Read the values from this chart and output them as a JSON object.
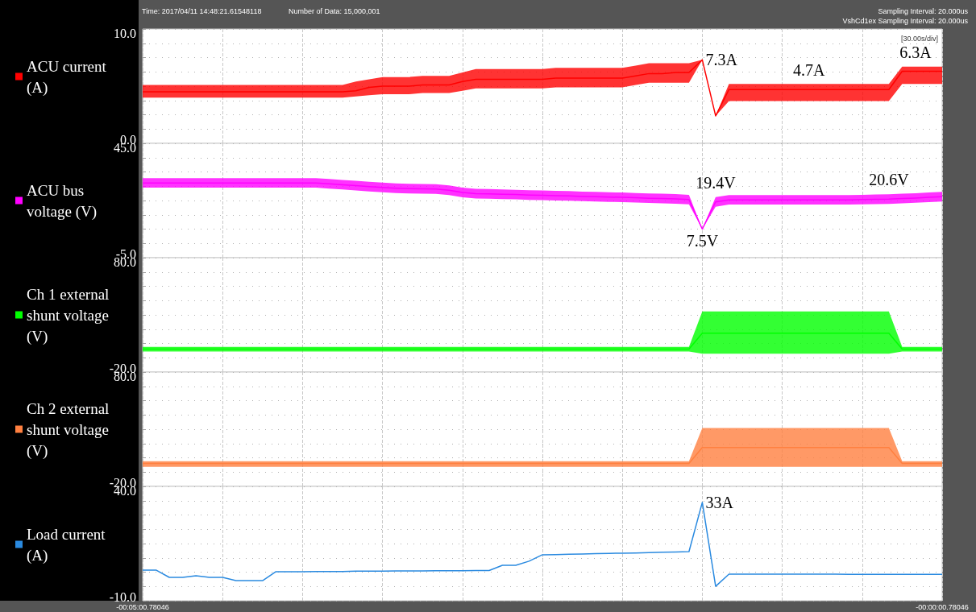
{
  "chart_data": [
    {
      "type": "line",
      "annotations": [
        "Time: 2017/04/11 14:48:21.61548118",
        "Number of Data: 15,000,001",
        "Sampling Interval: 20.000us",
        "VshCd1ex Sampling Interval: 20.000us",
        "[30.00s/div]",
        "7.3A",
        {
          "text": "4.7A",
          "y": 4.7
        },
        {
          "text": "6.3A",
          "y": 6.3
        }
      ],
      "categories": [
        null,
        null,
        null,
        null,
        null,
        null,
        null,
        null,
        null,
        null,
        null,
        null,
        null,
        null,
        null,
        null,
        null,
        null,
        null,
        null,
        null,
        null,
        null,
        null,
        null,
        null,
        null,
        null,
        null,
        null,
        null,
        null,
        null,
        null,
        null,
        null,
        null,
        null,
        null,
        null,
        null,
        null,
        null,
        null,
        null,
        null,
        null,
        null,
        null,
        null,
        null,
        null,
        null,
        null,
        null,
        null,
        null,
        null,
        null,
        null,
        null
      ],
      "series": [
        {
          "name": "ACU current (A)",
          "color": "#ff0000",
          "values": [
            4.5,
            4.5,
            4.5,
            4.5,
            4.5,
            4.5,
            4.5,
            4.5,
            4.5,
            4.5,
            4.5,
            4.5,
            4.5,
            4.5,
            4.5,
            4.5,
            4.6,
            4.9,
            5.0,
            5.0,
            5.0,
            5.1,
            5.1,
            5.1,
            5.4,
            5.6,
            5.6,
            5.6,
            5.6,
            5.6,
            5.6,
            5.7,
            5.7,
            5.7,
            5.7,
            5.7,
            5.7,
            5.9,
            6.1,
            6.1,
            6.2,
            6.2,
            7.3,
            2.4,
            4.7,
            4.7,
            4.7,
            4.7,
            4.7,
            4.7,
            4.7,
            4.7,
            4.7,
            4.7,
            4.7,
            4.7,
            4.7,
            6.3,
            6.3,
            6.3,
            6.3
          ],
          "lower": [
            4.0,
            4.0,
            4.0,
            4.0,
            4.0,
            4.0,
            4.0,
            4.0,
            4.0,
            4.0,
            4.0,
            4.0,
            4.0,
            4.0,
            4.0,
            4.0,
            4.1,
            4.2,
            4.3,
            4.3,
            4.3,
            4.4,
            4.4,
            4.4,
            4.6,
            4.8,
            4.8,
            4.8,
            4.8,
            4.8,
            4.8,
            4.9,
            4.9,
            4.9,
            4.9,
            4.9,
            4.9,
            5.1,
            5.3,
            5.3,
            5.3,
            5.3,
            7.3,
            2.4,
            3.7,
            3.7,
            3.7,
            3.7,
            3.7,
            3.7,
            3.7,
            3.7,
            3.7,
            3.7,
            3.7,
            3.7,
            3.7,
            5.2,
            5.2,
            5.2,
            5.2
          ],
          "upper": [
            5.1,
            5.1,
            5.1,
            5.1,
            5.1,
            5.1,
            5.1,
            5.1,
            5.1,
            5.1,
            5.1,
            5.1,
            5.1,
            5.1,
            5.1,
            5.1,
            5.4,
            5.6,
            5.8,
            5.8,
            5.8,
            5.9,
            5.9,
            5.9,
            6.2,
            6.5,
            6.5,
            6.5,
            6.5,
            6.5,
            6.5,
            6.6,
            6.6,
            6.6,
            6.6,
            6.6,
            6.6,
            6.8,
            7.0,
            7.0,
            7.0,
            7.0,
            7.3,
            2.4,
            5.2,
            5.2,
            5.2,
            5.2,
            5.2,
            5.2,
            5.2,
            5.2,
            5.2,
            5.2,
            5.2,
            5.2,
            5.2,
            6.7,
            6.7,
            6.7,
            6.7
          ]
        }
      ],
      "ylim": [
        0,
        10
      ],
      "yticks": [
        {
          "value": 0,
          "label": "0.0"
        },
        {
          "value": 1.25,
          "label": null
        },
        {
          "value": 2.5,
          "label": null
        },
        {
          "value": 3.75,
          "label": null
        },
        {
          "value": 5,
          "label": null
        },
        {
          "value": 6.25,
          "label": null
        },
        {
          "value": 7.5,
          "label": null
        },
        {
          "value": 8.75,
          "label": null
        },
        {
          "value": 10,
          "label": "10.0"
        }
      ],
      "tick_labels": "y",
      "grid": true,
      "legend": "left",
      "marker": "none"
    },
    {
      "type": "line",
      "annotations": [
        {
          "text": "19.4V",
          "y": 19.4
        },
        {
          "text": "7.5V",
          "y": 7.5
        },
        {
          "text": "20.6V",
          "y": 20.6
        }
      ],
      "categories": [
        null,
        null,
        null,
        null,
        null,
        null,
        null,
        null,
        null,
        null,
        null,
        null,
        null,
        null,
        null,
        null,
        null,
        null,
        null,
        null,
        null,
        null,
        null,
        null,
        null,
        null,
        null,
        null,
        null,
        null,
        null,
        null,
        null,
        null,
        null,
        null,
        null,
        null,
        null,
        null,
        null,
        null,
        null,
        null,
        null,
        null,
        null,
        null,
        null,
        null,
        null,
        null,
        null,
        null,
        null,
        null,
        null,
        null,
        null,
        null,
        null
      ],
      "series": [
        {
          "name": "ACU bus voltage (V)",
          "color": "#ff00ff",
          "values": [
            27.7,
            27.7,
            27.7,
            27.7,
            27.7,
            27.7,
            27.7,
            27.7,
            27.7,
            27.7,
            27.7,
            27.7,
            27.7,
            27.7,
            27.3,
            26.9,
            26.5,
            26.1,
            25.7,
            25.4,
            25.2,
            25.1,
            25.0,
            24.5,
            23.5,
            23.0,
            22.9,
            22.7,
            22.6,
            22.4,
            22.3,
            22.1,
            22.0,
            21.8,
            21.7,
            21.5,
            21.4,
            21.2,
            21.0,
            20.9,
            20.7,
            20.4,
            7.5,
            19.4,
            20.3,
            20.3,
            20.3,
            20.3,
            20.3,
            20.3,
            20.3,
            20.3,
            20.3,
            20.3,
            20.4,
            20.5,
            20.6,
            20.9,
            21.1,
            21.4,
            21.7
          ],
          "lower": [
            25.6,
            25.6,
            25.6,
            25.6,
            25.6,
            25.6,
            25.6,
            25.6,
            25.6,
            25.6,
            25.6,
            25.6,
            25.6,
            25.6,
            25.2,
            24.8,
            24.4,
            24.0,
            23.6,
            23.3,
            23.1,
            23.0,
            22.9,
            22.4,
            21.4,
            20.9,
            20.8,
            20.6,
            20.5,
            20.3,
            20.2,
            20.0,
            19.9,
            19.7,
            19.6,
            19.4,
            19.3,
            19.1,
            18.9,
            18.8,
            18.6,
            18.3,
            7.5,
            17.3,
            18.2,
            18.2,
            18.2,
            18.2,
            18.2,
            18.2,
            18.2,
            18.2,
            18.2,
            18.2,
            18.3,
            18.4,
            18.5,
            18.8,
            19.0,
            19.3,
            19.6
          ],
          "upper": [
            29.8,
            29.8,
            29.8,
            29.8,
            29.8,
            29.8,
            29.8,
            29.8,
            29.8,
            29.8,
            29.8,
            29.8,
            29.8,
            29.8,
            29.4,
            29.0,
            28.6,
            28.2,
            27.8,
            27.5,
            27.3,
            27.2,
            27.1,
            26.6,
            25.6,
            25.1,
            25.0,
            24.8,
            24.7,
            24.5,
            24.4,
            24.2,
            24.1,
            23.9,
            23.8,
            23.6,
            23.5,
            23.3,
            23.1,
            23.0,
            22.8,
            22.5,
            7.5,
            21.5,
            22.4,
            22.4,
            22.4,
            22.4,
            22.4,
            22.4,
            22.4,
            22.4,
            22.4,
            22.4,
            22.5,
            22.6,
            22.7,
            23.0,
            23.2,
            23.5,
            23.8
          ]
        }
      ],
      "ylim": [
        -5,
        45
      ],
      "yticks": [
        {
          "value": -5,
          "label": "-5.0"
        },
        {
          "value": 1.25,
          "label": null
        },
        {
          "value": 7.5,
          "label": null
        },
        {
          "value": 13.75,
          "label": null
        },
        {
          "value": 20,
          "label": null
        },
        {
          "value": 26.25,
          "label": null
        },
        {
          "value": 32.5,
          "label": null
        },
        {
          "value": 38.75,
          "label": null
        },
        {
          "value": 45,
          "label": "45.0"
        }
      ],
      "tick_labels": "y",
      "grid": true,
      "legend": "left",
      "marker": "none"
    },
    {
      "type": "line",
      "categories": [
        null,
        null,
        null,
        null,
        null,
        null,
        null,
        null,
        null,
        null,
        null,
        null,
        null,
        null,
        null,
        null,
        null,
        null,
        null,
        null,
        null,
        null,
        null,
        null,
        null,
        null,
        null,
        null,
        null,
        null,
        null,
        null,
        null,
        null,
        null,
        null,
        null,
        null,
        null,
        null,
        null,
        null,
        null,
        null,
        null,
        null,
        null,
        null,
        null,
        null,
        null,
        null,
        null,
        null,
        null,
        null,
        null,
        null,
        null,
        null,
        null
      ],
      "series": [
        {
          "name": "Ch 1 external shunt voltage (V)",
          "color": "#00ff00",
          "values": [
            0,
            0,
            0,
            0,
            0,
            0,
            0,
            0,
            0,
            0,
            0,
            0,
            0,
            0,
            0,
            0,
            0,
            0,
            0,
            0,
            0,
            0,
            0,
            0,
            0,
            0,
            0,
            0,
            0,
            0,
            0,
            0,
            0,
            0,
            0,
            0,
            0,
            0,
            0,
            0,
            0,
            0,
            14,
            14,
            14,
            14,
            14,
            14,
            14,
            14,
            14,
            14,
            14,
            14,
            14,
            14,
            14,
            0,
            0,
            0,
            0
          ],
          "lower": [
            -2,
            -2,
            -2,
            -2,
            -2,
            -2,
            -2,
            -2,
            -2,
            -2,
            -2,
            -2,
            -2,
            -2,
            -2,
            -2,
            -2,
            -2,
            -2,
            -2,
            -2,
            -2,
            -2,
            -2,
            -2,
            -2,
            -2,
            -2,
            -2,
            -2,
            -2,
            -2,
            -2,
            -2,
            -2,
            -2,
            -2,
            -2,
            -2,
            -2,
            -2,
            -2,
            -4,
            -4,
            -4,
            -4,
            -4,
            -4,
            -4,
            -4,
            -4,
            -4,
            -4,
            -4,
            -4,
            -4,
            -4,
            -2,
            -2,
            -2,
            -2
          ],
          "upper": [
            2,
            2,
            2,
            2,
            2,
            2,
            2,
            2,
            2,
            2,
            2,
            2,
            2,
            2,
            2,
            2,
            2,
            2,
            2,
            2,
            2,
            2,
            2,
            2,
            2,
            2,
            2,
            2,
            2,
            2,
            2,
            2,
            2,
            2,
            2,
            2,
            2,
            2,
            2,
            2,
            2,
            2,
            33,
            33,
            33,
            33,
            33,
            33,
            33,
            33,
            33,
            33,
            33,
            33,
            33,
            33,
            33,
            2,
            2,
            2,
            2
          ]
        }
      ],
      "ylim": [
        -20,
        80
      ],
      "yticks": [
        {
          "value": -20,
          "label": "-20.0"
        },
        {
          "value": -7.5,
          "label": null
        },
        {
          "value": 5,
          "label": null
        },
        {
          "value": 17.5,
          "label": null
        },
        {
          "value": 30,
          "label": null
        },
        {
          "value": 42.5,
          "label": null
        },
        {
          "value": 55,
          "label": null
        },
        {
          "value": 67.5,
          "label": null
        },
        {
          "value": 80,
          "label": "80.0"
        }
      ],
      "tick_labels": "y",
      "grid": true,
      "legend": "left",
      "marker": "none"
    },
    {
      "type": "line",
      "categories": [
        null,
        null,
        null,
        null,
        null,
        null,
        null,
        null,
        null,
        null,
        null,
        null,
        null,
        null,
        null,
        null,
        null,
        null,
        null,
        null,
        null,
        null,
        null,
        null,
        null,
        null,
        null,
        null,
        null,
        null,
        null,
        null,
        null,
        null,
        null,
        null,
        null,
        null,
        null,
        null,
        null,
        null,
        null,
        null,
        null,
        null,
        null,
        null,
        null,
        null,
        null,
        null,
        null,
        null,
        null,
        null,
        null,
        null,
        null,
        null,
        null
      ],
      "series": [
        {
          "name": "Ch 2 external shunt voltage (V)",
          "color": "#ff8040",
          "values": [
            0,
            0,
            0,
            0,
            0,
            0,
            0,
            0,
            0,
            0,
            0,
            0,
            0,
            0,
            0,
            0,
            0,
            0,
            0,
            0,
            0,
            0,
            0,
            0,
            0,
            0,
            0,
            0,
            0,
            0,
            0,
            0,
            0,
            0,
            0,
            0,
            0,
            0,
            0,
            0,
            0,
            0,
            14,
            14,
            14,
            14,
            14,
            14,
            14,
            14,
            14,
            14,
            14,
            14,
            14,
            14,
            14,
            0,
            0,
            0,
            0
          ],
          "lower": [
            -3,
            -3,
            -3,
            -3,
            -3,
            -3,
            -3,
            -3,
            -3,
            -3,
            -3,
            -3,
            -3,
            -3,
            -3,
            -3,
            -3,
            -3,
            -3,
            -3,
            -3,
            -3,
            -3,
            -3,
            -3,
            -3,
            -3,
            -3,
            -3,
            -3,
            -3,
            -3,
            -3,
            -3,
            -3,
            -3,
            -3,
            -3,
            -3,
            -3,
            -3,
            -3,
            -3,
            -3,
            -3,
            -3,
            -3,
            -3,
            -3,
            -3,
            -3,
            -3,
            -3,
            -3,
            -3,
            -3,
            -3,
            -3,
            -3,
            -3,
            -3
          ],
          "upper": [
            2,
            2,
            2,
            2,
            2,
            2,
            2,
            2,
            2,
            2,
            2,
            2,
            2,
            2,
            2,
            2,
            2,
            2,
            2,
            2,
            2,
            2,
            2,
            2,
            2,
            2,
            2,
            2,
            2,
            2,
            2,
            2,
            2,
            2,
            2,
            2,
            2,
            2,
            2,
            2,
            2,
            2,
            31,
            31,
            31,
            31,
            31,
            31,
            31,
            31,
            31,
            31,
            31,
            31,
            31,
            31,
            31,
            2,
            2,
            2,
            2
          ]
        }
      ],
      "ylim": [
        -20,
        80
      ],
      "yticks": [
        {
          "value": -20,
          "label": "-20.0"
        },
        {
          "value": -7.5,
          "label": null
        },
        {
          "value": 5,
          "label": null
        },
        {
          "value": 17.5,
          "label": null
        },
        {
          "value": 30,
          "label": null
        },
        {
          "value": 42.5,
          "label": null
        },
        {
          "value": 55,
          "label": null
        },
        {
          "value": 67.5,
          "label": null
        },
        {
          "value": 80,
          "label": "80.0"
        }
      ],
      "tick_labels": "y",
      "grid": true,
      "legend": "left",
      "marker": "none"
    },
    {
      "type": "line",
      "annotations": [
        "33A"
      ],
      "categories": [
        "-00:05:00.78046",
        null,
        null,
        null,
        null,
        null,
        null,
        null,
        null,
        null,
        null,
        null,
        null,
        null,
        null,
        null,
        null,
        null,
        null,
        null,
        null,
        null,
        null,
        null,
        null,
        null,
        null,
        null,
        null,
        null,
        null,
        null,
        null,
        null,
        null,
        null,
        null,
        null,
        null,
        null,
        null,
        null,
        null,
        null,
        null,
        null,
        null,
        null,
        null,
        null,
        null,
        null,
        null,
        null,
        null,
        null,
        null,
        null,
        null,
        null,
        "-00:00:00.78046"
      ],
      "series": [
        {
          "name": "Load current (A)",
          "color": "#2a8ae0",
          "values": [
            3.4,
            3.4,
            0.2,
            0.2,
            0.9,
            0.2,
            0.2,
            -1.2,
            -1.2,
            -1.2,
            2.7,
            2.7,
            2.7,
            2.8,
            2.8,
            2.8,
            2.9,
            2.9,
            2.9,
            3.0,
            3.0,
            3.0,
            3.1,
            3.1,
            3.1,
            3.2,
            3.2,
            5.5,
            5.5,
            7.3,
            10.1,
            10.2,
            10.3,
            10.4,
            10.6,
            10.7,
            10.8,
            10.9,
            11.0,
            11.2,
            11.3,
            11.5,
            33,
            -3.7,
            1.6,
            1.6,
            1.6,
            1.6,
            1.6,
            1.6,
            1.6,
            1.6,
            1.6,
            1.5,
            1.5,
            1.5,
            1.5,
            1.5,
            1.5,
            1.5,
            1.5
          ]
        }
      ],
      "ylim": [
        -10,
        40
      ],
      "yticks": [
        {
          "value": -10,
          "label": "-10.0"
        },
        {
          "value": -3.75,
          "label": null
        },
        {
          "value": 2.5,
          "label": null
        },
        {
          "value": 8.75,
          "label": null
        },
        {
          "value": 15,
          "label": null
        },
        {
          "value": 21.25,
          "label": null
        },
        {
          "value": 27.5,
          "label": null
        },
        {
          "value": 33.75,
          "label": null
        },
        {
          "value": 40,
          "label": "40.0"
        }
      ],
      "grid": true,
      "legend": "left",
      "marker": "none"
    }
  ]
}
